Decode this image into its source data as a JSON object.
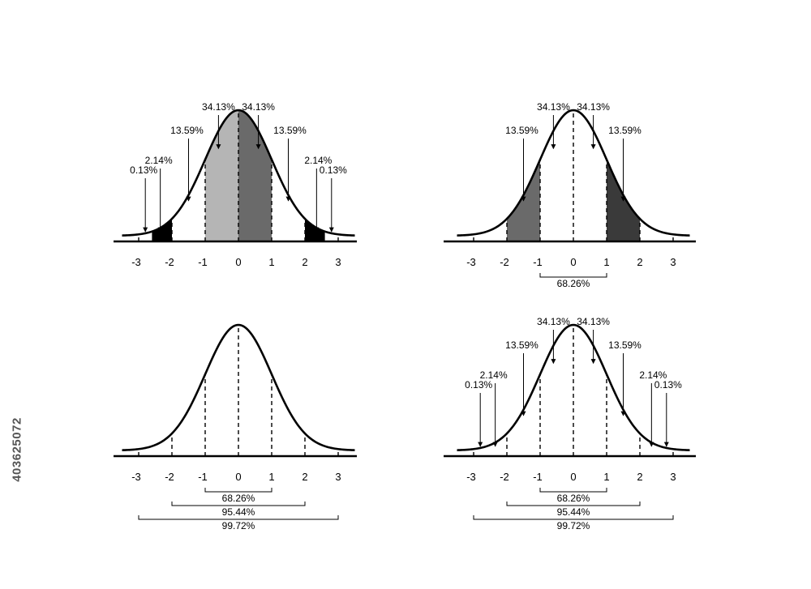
{
  "stock_id": "403625072",
  "colors": {
    "light_gray": "#b5b5b5",
    "mid_gray": "#6a6a6a",
    "dark_gray": "#3a3a3a",
    "black": "#000000"
  },
  "axis_ticks": [
    "-3",
    "-2",
    "-1",
    "0",
    "1",
    "2",
    "3"
  ],
  "panels": [
    {
      "id": "top-left",
      "shading": [
        {
          "from": -2.6,
          "to": -2,
          "fill": "black"
        },
        {
          "from": -1,
          "to": 0,
          "fill": "light_gray"
        },
        {
          "from": 0,
          "to": 1,
          "fill": "mid_gray"
        },
        {
          "from": 2,
          "to": 2.6,
          "fill": "black"
        }
      ],
      "percent_labels": [
        {
          "text": "0.13%",
          "at": -2.8
        },
        {
          "text": "2.14%",
          "at": -2.35
        },
        {
          "text": "13.59%",
          "at": -1.5
        },
        {
          "text": "34.13%",
          "at": -0.6
        },
        {
          "text": "34.13%",
          "at": 0.6
        },
        {
          "text": "13.59%",
          "at": 1.5
        },
        {
          "text": "2.14%",
          "at": 2.35
        },
        {
          "text": "0.13%",
          "at": 2.8
        }
      ],
      "brackets": []
    },
    {
      "id": "top-right",
      "shading": [
        {
          "from": -2,
          "to": -1,
          "fill": "mid_gray"
        },
        {
          "from": 1,
          "to": 2,
          "fill": "dark_gray"
        }
      ],
      "percent_labels": [
        {
          "text": "13.59%",
          "at": -1.5
        },
        {
          "text": "34.13%",
          "at": -0.6
        },
        {
          "text": "34.13%",
          "at": 0.6
        },
        {
          "text": "13.59%",
          "at": 1.5
        }
      ],
      "brackets": [
        {
          "text": "68.26%",
          "from": -1,
          "to": 1
        }
      ]
    },
    {
      "id": "bottom-left",
      "shading": [],
      "percent_labels": [],
      "brackets": [
        {
          "text": "68.26%",
          "from": -1,
          "to": 1
        },
        {
          "text": "95.44%",
          "from": -2,
          "to": 2
        },
        {
          "text": "99.72%",
          "from": -3,
          "to": 3
        }
      ]
    },
    {
      "id": "bottom-right",
      "shading": [],
      "percent_labels": [
        {
          "text": "0.13%",
          "at": -2.8
        },
        {
          "text": "2.14%",
          "at": -2.35
        },
        {
          "text": "13.59%",
          "at": -1.5
        },
        {
          "text": "34.13%",
          "at": -0.6
        },
        {
          "text": "34.13%",
          "at": 0.6
        },
        {
          "text": "13.59%",
          "at": 1.5
        },
        {
          "text": "2.14%",
          "at": 2.35
        },
        {
          "text": "0.13%",
          "at": 2.8
        }
      ],
      "brackets": [
        {
          "text": "68.26%",
          "from": -1,
          "to": 1
        },
        {
          "text": "95.44%",
          "from": -2,
          "to": 2
        },
        {
          "text": "99.72%",
          "from": -3,
          "to": 3
        }
      ]
    }
  ]
}
